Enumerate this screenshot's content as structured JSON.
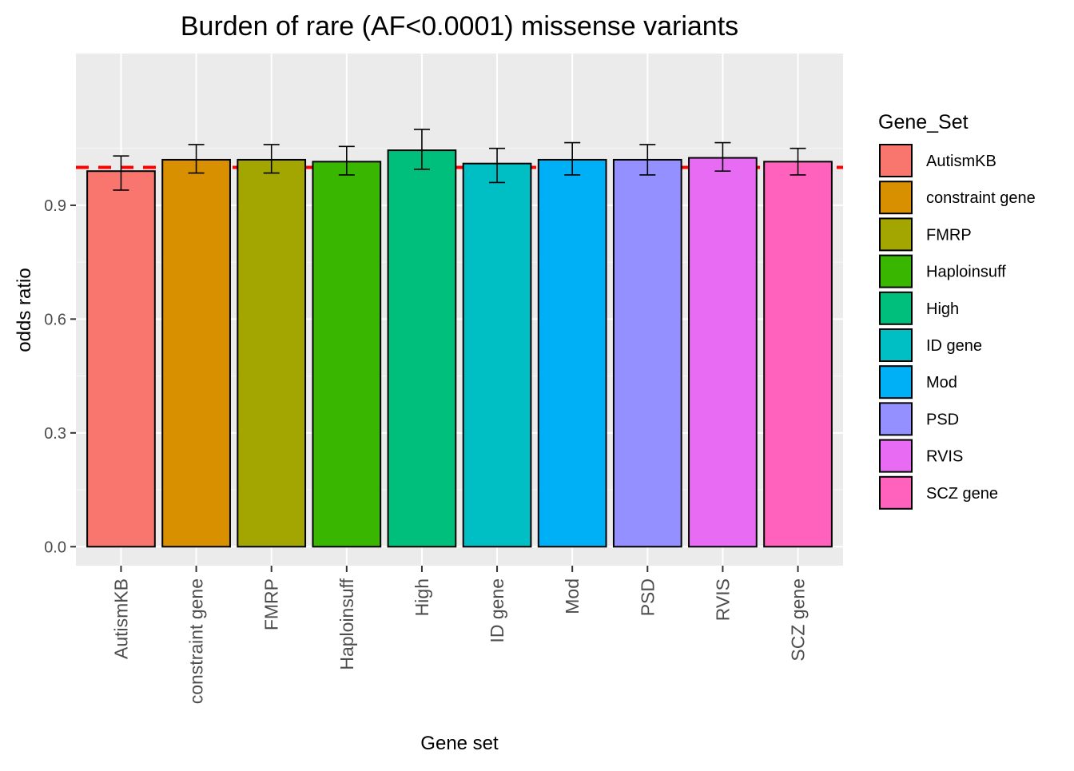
{
  "chart_data": {
    "type": "bar",
    "title": "Burden of rare (AF<0.0001) missense variants",
    "xlabel": "Gene set",
    "ylabel": "odds ratio",
    "ylim": [
      -0.05,
      1.3
    ],
    "yticks": [
      0.0,
      0.3,
      0.6,
      0.9
    ],
    "ytick_labels": [
      "0.0",
      "0.3",
      "0.6",
      "0.9"
    ],
    "grid": true,
    "reference_line": {
      "y": 1.0,
      "color": "#ff0000",
      "style": "dashed"
    },
    "legend": {
      "title": "Gene_Set",
      "placement": "right"
    },
    "categories": [
      "AutismKB",
      "constraint gene",
      "FMRP",
      "Haploinsuff",
      "High",
      "ID gene",
      "Mod",
      "PSD",
      "RVIS",
      "SCZ gene"
    ],
    "values": [
      0.99,
      1.02,
      1.02,
      1.015,
      1.045,
      1.01,
      1.02,
      1.02,
      1.025,
      1.015
    ],
    "error_low": [
      0.94,
      0.985,
      0.985,
      0.98,
      0.995,
      0.96,
      0.98,
      0.98,
      0.99,
      0.98
    ],
    "error_high": [
      1.03,
      1.06,
      1.06,
      1.055,
      1.1,
      1.05,
      1.065,
      1.06,
      1.065,
      1.05
    ],
    "colors": [
      "#F8766D",
      "#D89000",
      "#A3A500",
      "#39B600",
      "#00BF7D",
      "#00BFC4",
      "#00B0F6",
      "#9590FF",
      "#E76BF3",
      "#FF62BC"
    ]
  }
}
